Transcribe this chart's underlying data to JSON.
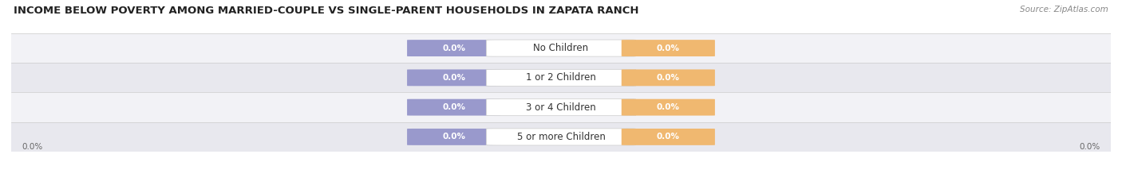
{
  "title": "INCOME BELOW POVERTY AMONG MARRIED-COUPLE VS SINGLE-PARENT HOUSEHOLDS IN ZAPATA RANCH",
  "source": "Source: ZipAtlas.com",
  "categories": [
    "No Children",
    "1 or 2 Children",
    "3 or 4 Children",
    "5 or more Children"
  ],
  "married_values": [
    0.0,
    0.0,
    0.0,
    0.0
  ],
  "single_values": [
    0.0,
    0.0,
    0.0,
    0.0
  ],
  "married_color": "#9999cc",
  "single_color": "#f0b870",
  "row_bg_colors": [
    "#f2f2f6",
    "#e8e8ee"
  ],
  "title_fontsize": 9.5,
  "source_fontsize": 7.5,
  "value_fontsize": 7.5,
  "category_fontsize": 8.5,
  "legend_fontsize": 8,
  "axis_label_left": "0.0%",
  "axis_label_right": "0.0%"
}
